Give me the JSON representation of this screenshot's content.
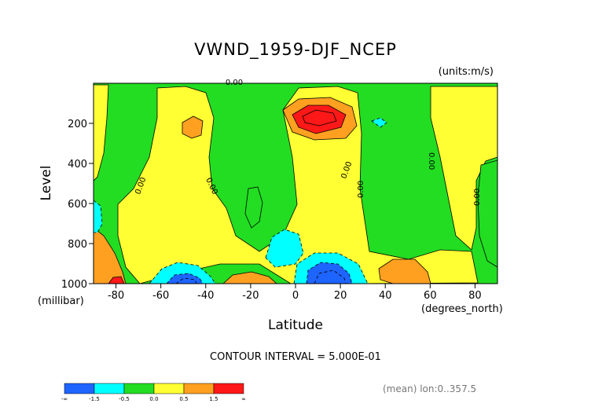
{
  "chart_data": {
    "type": "heatmap",
    "title": "VWND_1959-DJF_NCEP",
    "units": "(units:m/s)",
    "xlabel": "Latitude",
    "x_unit": "(degrees_north)",
    "ylabel": "Level",
    "y_unit": "(millibar)",
    "xlim": [
      -90,
      90
    ],
    "ylim": [
      1000,
      0
    ],
    "x_ticks": [
      "-80",
      "-60",
      "-40",
      "-20",
      "0",
      "20",
      "40",
      "60",
      "80"
    ],
    "x_tick_values": [
      -80,
      -60,
      -40,
      -20,
      0,
      20,
      40,
      60,
      80
    ],
    "y_ticks": [
      "200",
      "400",
      "600",
      "800",
      "1000"
    ],
    "y_tick_values": [
      200,
      400,
      600,
      800,
      1000
    ],
    "contour_interval_text": "CONTOUR INTERVAL = 5.000E-01",
    "mean_text": "(mean) lon:0..357.5",
    "contour_labels": [
      "0.00",
      "0.00",
      "0.00",
      "0.00",
      "0.00",
      "0.00",
      "0.00"
    ],
    "colorbar": {
      "boundaries": [
        "-∞",
        "-1.5",
        "-0.5",
        "0.0",
        "0.5",
        "1.5",
        "∞"
      ],
      "colors": [
        "#1e64ff",
        "#00ffff",
        "#22dd22",
        "#ffff33",
        "#ffa020",
        "#ff1818"
      ]
    },
    "features": [
      {
        "kind": "min",
        "lat": -50,
        "level": 975,
        "value": -1.5
      },
      {
        "kind": "min",
        "lat": 13,
        "level": 960,
        "value": -1.5
      },
      {
        "kind": "neg",
        "lat": -8,
        "level": 860,
        "value": -0.7
      },
      {
        "kind": "neg",
        "lat": 36,
        "level": 190,
        "value": -0.6
      },
      {
        "kind": "neg",
        "lat": -86,
        "level": 690,
        "value": -0.6
      },
      {
        "kind": "max",
        "lat": 16,
        "level": 150,
        "value": 2.2
      },
      {
        "kind": "max",
        "lat": -84,
        "level": 990,
        "value": 1.8
      },
      {
        "kind": "pos",
        "lat": -48,
        "level": 200,
        "value": 0.7
      },
      {
        "kind": "pos",
        "lat": 54,
        "level": 960,
        "value": 0.8
      },
      {
        "kind": "pos",
        "lat": -27,
        "level": 975,
        "value": 0.6
      }
    ]
  }
}
